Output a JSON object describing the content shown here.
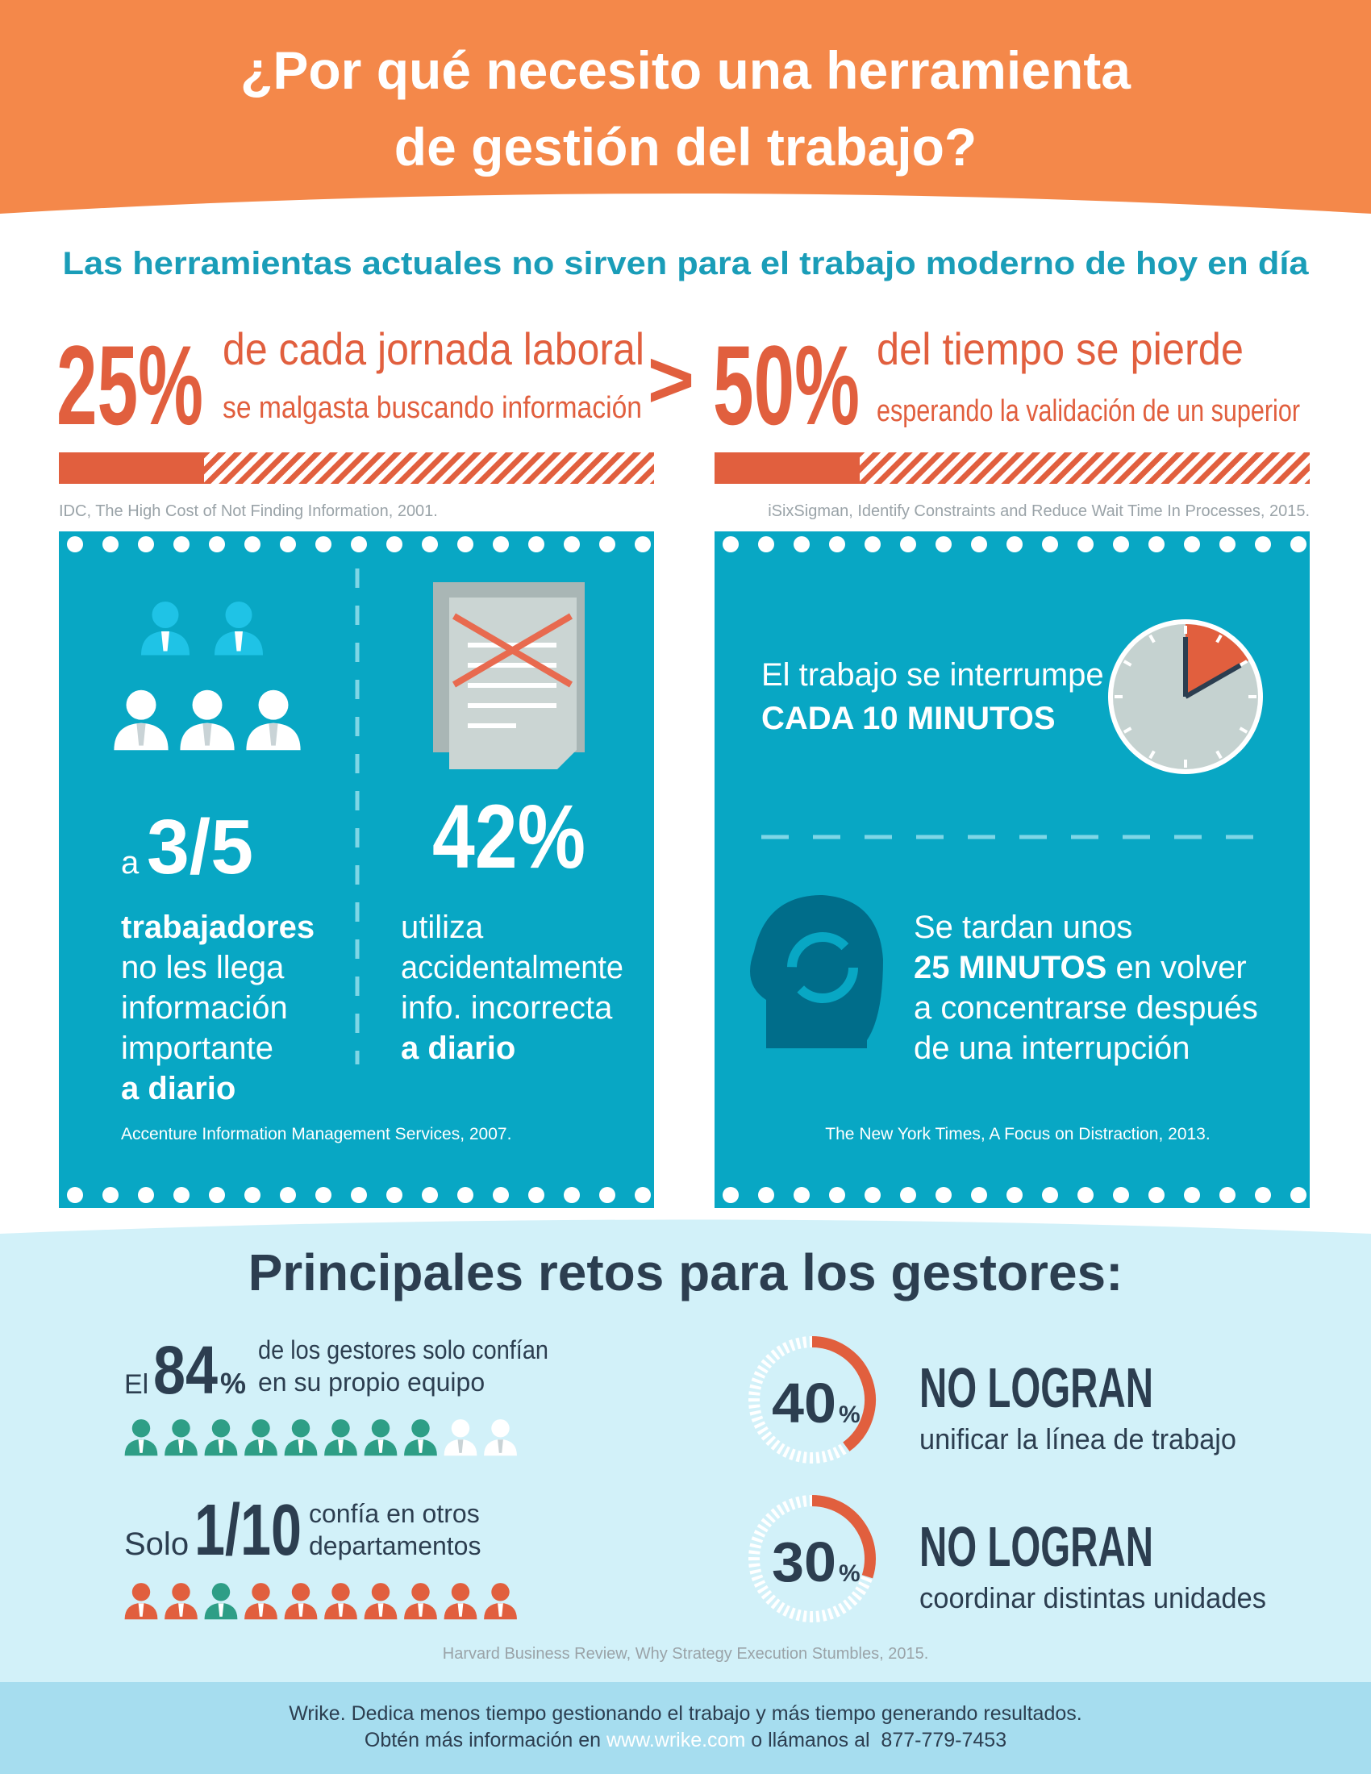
{
  "header": {
    "title_lines": [
      "¿Por qué necesito una herramienta",
      "de gestión del trabajo?"
    ]
  },
  "subtitle": "Las herramientas actuales no sirven para el trabajo moderno de hoy en día",
  "stats": [
    {
      "figure": "25%",
      "headline": "de cada jornada laboral",
      "detail": "se malgasta buscando información",
      "source": "IDC, The High Cost of Not Finding Information, 2001."
    },
    {
      "figure": "50%",
      "headline": "del tiempo se pierde",
      "detail": "esperando la validación de un superior",
      "source": "iSixSigman, Identify Constraints and Reduce Wait Time In Processes, 2015."
    }
  ],
  "separator": ">",
  "left_panel": {
    "col1": {
      "prefix": "a",
      "figure": "3/5",
      "lines": [
        "trabajadores",
        "no les llega",
        "información",
        "importante",
        "a diario"
      ]
    },
    "col2": {
      "figure": "42%",
      "lines": [
        "utiliza",
        "accidentalmente",
        "info. incorrecta",
        "a diario"
      ]
    },
    "source": "Accenture Information Management Services, 2007."
  },
  "right_panel": {
    "interrupt": {
      "line": "El trabajo se interrumpe",
      "emphasis": "CADA 10 MINUTOS"
    },
    "refocus": {
      "line1": "Se tardan unos",
      "emphasis": "25 MINUTOS",
      "line2_rest": " en volver",
      "line3": "a concentrarse después",
      "line4": "de una interrupción"
    },
    "source": "The New York Times, A Focus on Distraction, 2013."
  },
  "challenges": {
    "title": "Principales retos para los gestores:",
    "trust": [
      {
        "prefix": "El",
        "figure": "84",
        "unit": "%",
        "lines": [
          "de los gestores solo confían",
          "en su propio equipo"
        ],
        "icon_colors": [
          "#2e9e86",
          "#2e9e86",
          "#2e9e86",
          "#2e9e86",
          "#2e9e86",
          "#2e9e86",
          "#2e9e86",
          "#2e9e86",
          "#ffffff",
          "#ffffff"
        ]
      },
      {
        "prefix": "Solo",
        "figure": "1/10",
        "lines": [
          "confía en otros",
          "departamentos"
        ],
        "icon_colors": [
          "#e15f3e",
          "#e15f3e",
          "#2e9e86",
          "#e15f3e",
          "#e15f3e",
          "#e15f3e",
          "#e15f3e",
          "#e15f3e",
          "#e15f3e",
          "#e15f3e"
        ]
      }
    ],
    "rings": [
      {
        "value": 40,
        "unit": "%",
        "headline": "NO LOGRAN",
        "detail": "unificar la línea de trabajo"
      },
      {
        "value": 30,
        "unit": "%",
        "headline": "NO LOGRAN",
        "detail": "coordinar distintas unidades"
      }
    ],
    "source": "Harvard Business Review, Why Strategy Execution Stumbles, 2015."
  },
  "footer": {
    "line1": "Wrike. Dedica menos tiempo gestionando el trabajo y más tiempo generando resultados.",
    "line2": [
      "Obtén más información en ",
      "www.wrike.com",
      " o llámanos al  877-779-7453"
    ]
  }
}
